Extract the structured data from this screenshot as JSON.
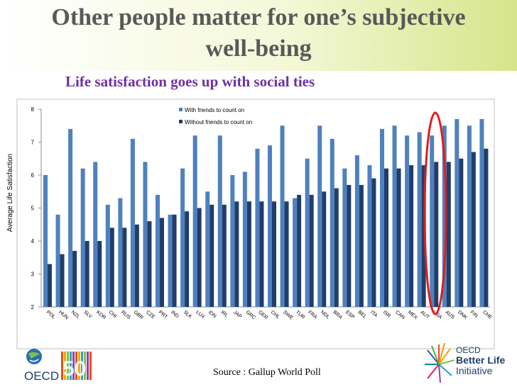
{
  "header": {
    "title_line1": "Other people matter for one’s subjective",
    "title_line2": "well-being",
    "subtitle": "Life satisfaction goes up with social ties"
  },
  "footer": {
    "source": "Source : Gallup World Poll",
    "logo_left_text": "OECD",
    "logo_left_number": "50",
    "logo_right_line1": "OECD",
    "logo_right_line2": "Better Life",
    "logo_right_line3": "Initiative"
  },
  "colors": {
    "with_friends": "#4f81bd",
    "without_friends": "#1f3e6b",
    "highlight": "#e31b1b",
    "title": "#595959",
    "subtitle": "#7030a0"
  },
  "chart_data": {
    "type": "bar",
    "ylabel": "Average Life Satisfaction",
    "ylim": [
      2,
      8
    ],
    "yticks": [
      2,
      3,
      4,
      5,
      6,
      7,
      8
    ],
    "legend_position": "top-center",
    "highlighted_category": "USA",
    "categories": [
      "POL",
      "HUN",
      "NZL",
      "SLV",
      "KOR",
      "CHI",
      "RUS",
      "GBR",
      "CZE",
      "PRT",
      "IND",
      "SLK",
      "LUX",
      "IDN",
      "IRL",
      "JAP",
      "GRC",
      "GER",
      "CHL",
      "SWE",
      "TUR",
      "FRA",
      "NDL",
      "BRA",
      "ESP",
      "BEL",
      "ITA",
      "ISR",
      "CAN",
      "MEX",
      "AUT",
      "USA",
      "AUS",
      "DNK",
      "FIN",
      "CHE"
    ],
    "series": [
      {
        "name": "With friends to count on",
        "values": [
          6.0,
          4.8,
          7.4,
          6.2,
          6.4,
          5.1,
          5.3,
          7.1,
          6.4,
          5.4,
          4.8,
          6.2,
          7.2,
          5.5,
          7.2,
          6.0,
          6.1,
          6.8,
          6.9,
          7.5,
          5.3,
          6.5,
          7.5,
          7.1,
          6.2,
          6.6,
          6.3,
          7.4,
          7.5,
          7.2,
          7.3,
          7.2,
          7.5,
          7.7,
          7.5,
          7.7
        ]
      },
      {
        "name": "Without friends to count on",
        "values": [
          3.3,
          3.6,
          3.7,
          4.0,
          4.0,
          4.4,
          4.4,
          4.5,
          4.6,
          4.7,
          4.8,
          4.9,
          5.0,
          5.1,
          5.1,
          5.2,
          5.2,
          5.2,
          5.2,
          5.2,
          5.4,
          5.4,
          5.5,
          5.6,
          5.7,
          5.7,
          5.9,
          6.2,
          6.2,
          6.3,
          6.3,
          6.4,
          6.4,
          6.5,
          6.7,
          6.8
        ]
      }
    ]
  }
}
